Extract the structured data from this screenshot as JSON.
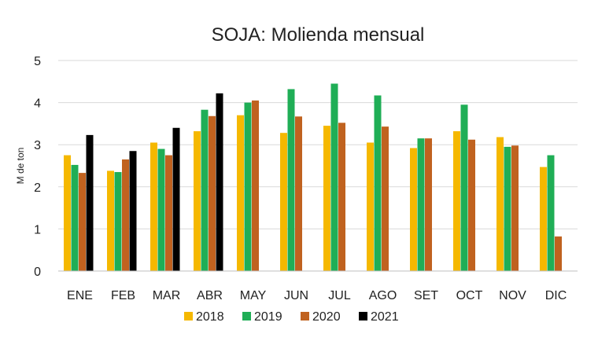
{
  "chart_data": {
    "type": "bar",
    "title": "SOJA: Molienda mensual",
    "xlabel": "",
    "ylabel": "M de ton",
    "ylim": [
      0,
      5
    ],
    "yticks": [
      0,
      1,
      2,
      3,
      4,
      5
    ],
    "grid": true,
    "legend_position": "bottom",
    "categories": [
      "ENE",
      "FEB",
      "MAR",
      "ABR",
      "MAY",
      "JUN",
      "JUL",
      "AGO",
      "SET",
      "OCT",
      "NOV",
      "DIC"
    ],
    "series": [
      {
        "name": "2018",
        "color": "#f5b800",
        "values": [
          2.75,
          2.38,
          3.05,
          3.32,
          3.7,
          3.28,
          3.45,
          3.05,
          2.92,
          3.32,
          3.18,
          2.47
        ]
      },
      {
        "name": "2019",
        "color": "#1fae56",
        "values": [
          2.52,
          2.35,
          2.9,
          3.83,
          4.0,
          4.32,
          4.45,
          4.17,
          3.15,
          3.95,
          2.95,
          2.75
        ]
      },
      {
        "name": "2020",
        "color": "#c0621f",
        "values": [
          2.33,
          2.65,
          2.75,
          3.68,
          4.05,
          3.67,
          3.52,
          3.43,
          3.15,
          3.12,
          2.98,
          0.82
        ]
      },
      {
        "name": "2021",
        "color": "#000000",
        "values": [
          3.23,
          2.85,
          3.4,
          4.22,
          null,
          null,
          null,
          null,
          null,
          null,
          null,
          null
        ]
      }
    ]
  }
}
